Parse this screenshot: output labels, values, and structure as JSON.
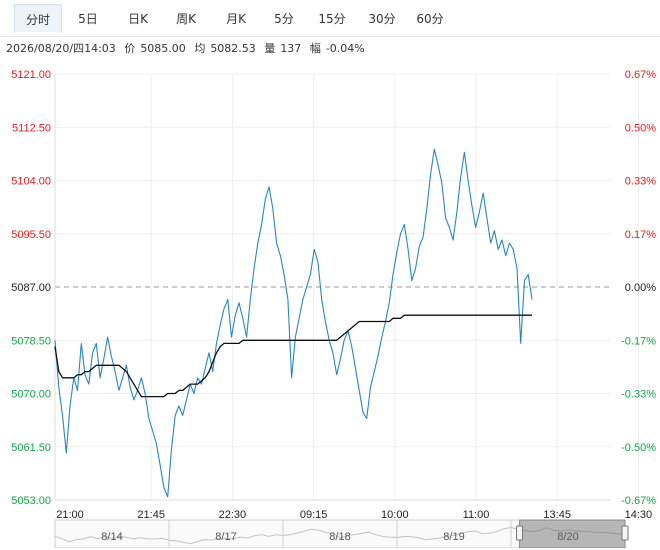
{
  "tabs": [
    {
      "label": "分时",
      "active": true
    },
    {
      "label": "5日"
    },
    {
      "label": "日K"
    },
    {
      "label": "周K"
    },
    {
      "label": "月K"
    },
    {
      "label": "5分"
    },
    {
      "label": "15分"
    },
    {
      "label": "30分"
    },
    {
      "label": "60分"
    }
  ],
  "info": {
    "datetime": "2026/08/20/四14:03",
    "price_label": "价",
    "price": "5085.00",
    "avg_label": "均",
    "avg": "5082.53",
    "vol_label": "量",
    "vol": "137",
    "chg_label": "幅",
    "chg": "-0.04%"
  },
  "colors": {
    "up": "#e02020",
    "down": "#16a34a",
    "price_line": "#2a86c0",
    "avg_line": "#111111",
    "grid": "#efefef"
  },
  "chart_data": {
    "type": "line",
    "ylim": [
      5053.0,
      5121.0
    ],
    "y_ticks": [
      "5121.00",
      "5112.50",
      "5104.00",
      "5095.50",
      "5087.00",
      "5078.50",
      "5070.00",
      "5061.50",
      "5053.00"
    ],
    "pct_ticks": [
      "0.67%",
      "0.50%",
      "0.33%",
      "0.17%",
      "0.00%",
      "-0.17%",
      "-0.33%",
      "-0.50%",
      "-0.67%"
    ],
    "x_ticks": [
      "21:00",
      "21:45",
      "22:30",
      "09:15",
      "10:00",
      "11:00",
      "13:45",
      "14:30"
    ],
    "prev_close": 5087.0,
    "series": [
      {
        "values": [
          5078.5,
          5071.0,
          5066.5,
          5060.5,
          5068.0,
          5072.5,
          5070.5,
          5078.0,
          5073.0,
          5071.5,
          5076.5,
          5078.0,
          5072.5,
          5075.5,
          5079.0,
          5076.0,
          5073.5,
          5070.5,
          5072.5,
          5074.5,
          5071.0,
          5069.0,
          5070.5,
          5072.5,
          5070.0,
          5066.0,
          5064.0,
          5062.0,
          5058.5,
          5055.0,
          5053.5,
          5061.0,
          5066.5,
          5068.0,
          5066.5,
          5069.0,
          5071.5,
          5070.0,
          5072.5,
          5071.5,
          5074.0,
          5076.5,
          5073.5,
          5078.0,
          5081.0,
          5083.5,
          5085.0,
          5079.0,
          5082.5,
          5084.5,
          5082.0,
          5079.0,
          5085.0,
          5090.0,
          5094.0,
          5097.0,
          5101.0,
          5103.0,
          5099.5,
          5094.0,
          5092.0,
          5089.0,
          5085.0,
          5072.5,
          5079.0,
          5082.0,
          5085.0,
          5087.0,
          5089.0,
          5093.0,
          5091.0,
          5085.0,
          5081.5,
          5078.5,
          5076.5,
          5073.0,
          5075.5,
          5078.5,
          5080.0,
          5077.5,
          5074.0,
          5070.5,
          5067.0,
          5066.0,
          5071.0,
          5073.5,
          5076.0,
          5079.0,
          5081.5,
          5084.5,
          5089.0,
          5092.5,
          5095.5,
          5097.0,
          5093.0,
          5088.0,
          5090.0,
          5093.5,
          5095.0,
          5099.5,
          5105.0,
          5109.0,
          5106.5,
          5103.5,
          5098.0,
          5096.5,
          5094.5,
          5099.0,
          5104.5,
          5108.5,
          5104.0,
          5100.0,
          5096.5,
          5099.0,
          5102.0,
          5098.0,
          5094.0,
          5096.0,
          5093.0,
          5094.5,
          5092.0,
          5094.0,
          5093.0,
          5090.0,
          5078.0,
          5088.0,
          5089.0,
          5085.0
        ]
      },
      {
        "values": [
          5077.5,
          5073.5,
          5072.5,
          5072.5,
          5072.5,
          5072.5,
          5073.0,
          5073.0,
          5073.5,
          5073.5,
          5074.0,
          5074.5,
          5074.5,
          5074.5,
          5074.5,
          5074.5,
          5074.5,
          5074.5,
          5074.0,
          5073.5,
          5072.5,
          5071.5,
          5070.5,
          5069.5,
          5069.5,
          5069.5,
          5069.5,
          5069.5,
          5069.5,
          5069.5,
          5070.0,
          5070.0,
          5070.0,
          5070.5,
          5070.5,
          5071.0,
          5071.5,
          5071.5,
          5071.5,
          5072.0,
          5072.5,
          5073.5,
          5075.0,
          5076.5,
          5077.5,
          5078.0,
          5078.0,
          5078.0,
          5078.0,
          5078.0,
          5078.5,
          5078.5,
          5078.5,
          5078.5,
          5078.5,
          5078.5,
          5078.5,
          5078.5,
          5078.5,
          5078.5,
          5078.5,
          5078.5,
          5078.5,
          5078.5,
          5078.5,
          5078.5,
          5078.5,
          5078.5,
          5078.5,
          5078.5,
          5078.5,
          5078.5,
          5078.5,
          5078.5,
          5078.5,
          5078.5,
          5079.0,
          5079.5,
          5080.0,
          5080.5,
          5081.0,
          5081.5,
          5081.5,
          5081.5,
          5081.5,
          5081.5,
          5081.5,
          5081.5,
          5081.5,
          5081.5,
          5082.0,
          5082.0,
          5082.0,
          5082.5,
          5082.5,
          5082.5,
          5082.5,
          5082.5,
          5082.5,
          5082.5,
          5082.5,
          5082.5,
          5082.5,
          5082.5,
          5082.5,
          5082.5,
          5082.5,
          5082.5,
          5082.5,
          5082.5,
          5082.5,
          5082.5,
          5082.5,
          5082.5,
          5082.5,
          5082.5,
          5082.5,
          5082.5,
          5082.5,
          5082.5,
          5082.5,
          5082.5,
          5082.5,
          5082.5,
          5082.5,
          5082.5,
          5082.5,
          5082.5
        ]
      }
    ]
  },
  "navigator": {
    "dates": [
      "8/14",
      "8/17",
      "8/18",
      "8/19",
      "8/20"
    ],
    "window": [
      0.815,
      1.0
    ]
  }
}
